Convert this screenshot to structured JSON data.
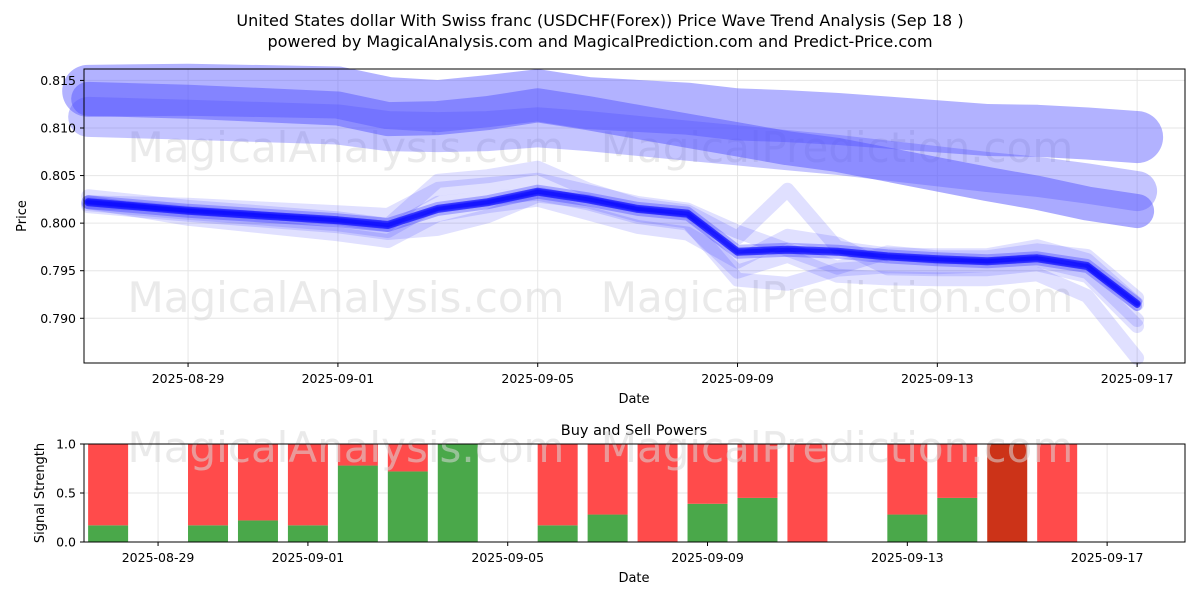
{
  "title_line1": "United States dollar With Swiss franc (USDCHF(Forex)) Price Wave Trend Analysis (Sep 18 )",
  "title_line2": "powered by MagicalAnalysis.com and MagicalPrediction.com and Predict-Price.com",
  "watermarks": [
    "MagicalAnalysis.com",
    "MagicalPrediction.com",
    "MagicalAnalysis.com",
    "MagicalPrediction.com",
    "MagicalAnalysis.com",
    "MagicalPrediction.com"
  ],
  "chart_data": [
    {
      "type": "line",
      "xlabel": "Date",
      "ylabel": "Price",
      "ylim": [
        0.7853,
        0.8162
      ],
      "xlim": [
        "2025-08-26T22:00",
        "2025-09-17T23:00"
      ],
      "x_ticks": [
        "2025-08-29",
        "2025-09-01",
        "2025-09-05",
        "2025-09-09",
        "2025-09-13",
        "2025-09-17"
      ],
      "y_ticks": [
        0.79,
        0.795,
        0.8,
        0.805,
        0.81,
        0.815
      ],
      "y_tick_labels": [
        "0.790",
        "0.795",
        "0.800",
        "0.805",
        "0.810",
        "0.815"
      ],
      "grid": true,
      "colors": {
        "wave": "#0000ff",
        "upper_band": "#5555ff"
      },
      "series": [
        {
          "x": [
            "2025-08-27",
            "2025-08-29",
            "2025-09-01",
            "2025-09-02",
            "2025-09-03",
            "2025-09-04",
            "2025-09-05",
            "2025-09-06",
            "2025-09-07",
            "2025-09-08",
            "2025-09-09",
            "2025-09-10",
            "2025-09-11",
            "2025-09-12",
            "2025-09-13",
            "2025-09-14",
            "2025-09-15",
            "2025-09-16",
            "2025-09-17"
          ],
          "values": [
            0.8022,
            0.8013,
            0.8003,
            0.7998,
            0.8015,
            0.8022,
            0.8033,
            0.8025,
            0.8015,
            0.801,
            0.797,
            0.7972,
            0.797,
            0.7965,
            0.7962,
            0.796,
            0.7963,
            0.7955,
            0.7915
          ]
        },
        {
          "x": [
            "2025-08-27",
            "2025-08-29",
            "2025-09-01",
            "2025-09-02",
            "2025-09-03",
            "2025-09-04",
            "2025-09-05",
            "2025-09-06",
            "2025-09-07",
            "2025-09-08",
            "2025-09-09",
            "2025-09-10",
            "2025-09-11",
            "2025-09-12",
            "2025-09-13",
            "2025-09-14",
            "2025-09-15",
            "2025-09-16",
            "2025-09-17"
          ],
          "values": [
            0.8118,
            0.8115,
            0.811,
            0.8103,
            0.8102,
            0.8103,
            0.8107,
            0.8103,
            0.8098,
            0.8093,
            0.8088,
            0.8083,
            0.8078,
            0.8072,
            0.8066,
            0.806,
            0.8055,
            0.8048,
            0.804
          ]
        }
      ]
    },
    {
      "type": "bar",
      "title": "Buy and Sell Powers",
      "xlabel": "Date",
      "ylabel": "Signal Strength",
      "ylim": [
        0,
        1.0
      ],
      "x_ticks": [
        "2025-08-29",
        "2025-09-01",
        "2025-09-05",
        "2025-09-09",
        "2025-09-13",
        "2025-09-17"
      ],
      "y_ticks": [
        0.0,
        0.5,
        1.0
      ],
      "y_tick_labels": [
        "0.0",
        "0.5",
        "1.0"
      ],
      "colors": {
        "buy": "#4aa84a",
        "sell": "#ff4b4b",
        "strong_sell": "#cc3318"
      },
      "categories": [
        "2025-08-28",
        "2025-08-30",
        "2025-08-31",
        "2025-09-01",
        "2025-09-02",
        "2025-09-03",
        "2025-09-04",
        "2025-09-06",
        "2025-09-07",
        "2025-09-08",
        "2025-09-09",
        "2025-09-10",
        "2025-09-11",
        "2025-09-13",
        "2025-09-14",
        "2025-09-15",
        "2025-09-16"
      ],
      "series": [
        {
          "name": "buy",
          "values": [
            0.17,
            0.17,
            0.22,
            0.17,
            0.78,
            0.72,
            1.0,
            0.17,
            0.28,
            0.0,
            0.39,
            0.45,
            0.0,
            0.28,
            0.45,
            0.0,
            0.0
          ]
        },
        {
          "name": "sell",
          "values": [
            0.83,
            0.83,
            0.78,
            0.83,
            0.22,
            0.28,
            0.0,
            0.83,
            0.72,
            1.0,
            0.61,
            0.55,
            1.0,
            0.72,
            0.55,
            1.0,
            1.0
          ]
        }
      ],
      "strong_sell_index": 15
    }
  ]
}
